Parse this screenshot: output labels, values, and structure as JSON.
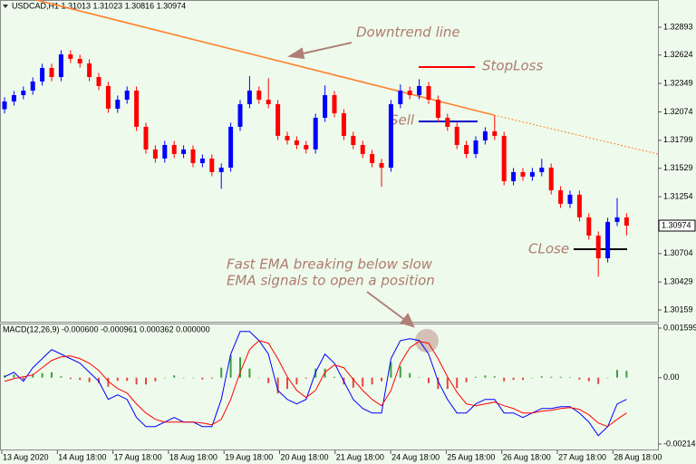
{
  "chart_data": [
    {
      "type": "candlestick",
      "title": "USDCAD,H1  1.31013 1.31023 1.30816 1.30974",
      "up_color": "#0000ff",
      "down_color": "#ff0000",
      "ylim": [
        1.30045,
        1.33156
      ],
      "yticks": [
        1.32893,
        1.32624,
        1.32349,
        1.32074,
        1.31799,
        1.31529,
        1.31254,
        1.30704,
        1.30429,
        1.30159
      ],
      "last_price": 1.30974,
      "xticks": [
        "13 Aug 2020",
        "14 Aug 18:00",
        "17 Aug 18:00",
        "18 Aug 18:00",
        "19 Aug 18:00",
        "20 Aug 18:00",
        "21 Aug 18:00",
        "24 Aug 18:00",
        "25 Aug 18:00",
        "26 Aug 18:00",
        "27 Aug 18:00",
        "28 Aug 18:00"
      ],
      "annotations": [
        "Downtrend line",
        "StopLoss",
        "Sell",
        "CLose",
        "Fast EMA breaking below slow",
        "EMA signals to open a position"
      ],
      "open": [
        1.321,
        1.32175,
        1.32236,
        1.3228,
        1.32368,
        1.32499,
        1.32411,
        1.3263,
        1.32587,
        1.32543,
        1.32411,
        1.32324,
        1.32105,
        1.32192,
        1.3228,
        1.3193,
        1.31711,
        1.31623,
        1.31754,
        1.31667,
        1.31711,
        1.31579,
        1.31623,
        1.31492,
        1.31535,
        1.3193,
        1.32149,
        1.3228,
        1.32192,
        1.32149,
        1.31842,
        1.31798,
        1.31754,
        1.31711,
        1.32017,
        1.32236,
        1.32061,
        1.31842,
        1.31754,
        1.31667,
        1.31579,
        1.31535,
        1.32149,
        1.3228,
        1.32236,
        1.32324,
        1.32192,
        1.32017,
        1.3193,
        1.31754,
        1.31667,
        1.31798,
        1.31886,
        1.31842,
        1.31404,
        1.31492,
        1.31448,
        1.31492,
        1.31535,
        1.31316,
        1.31185,
        1.31273,
        1.31054,
        1.30878,
        1.30659,
        1.3101,
        1.31054
      ],
      "high": [
        1.32215,
        1.32276,
        1.3232,
        1.32408,
        1.32539,
        1.32539,
        1.3267,
        1.3267,
        1.32627,
        1.32583,
        1.32451,
        1.32364,
        1.32232,
        1.3232,
        1.3232,
        1.3197,
        1.31751,
        1.31794,
        1.31794,
        1.31751,
        1.31751,
        1.31663,
        1.31663,
        1.31575,
        1.3197,
        1.32189,
        1.3242,
        1.3232,
        1.324,
        1.32189,
        1.31882,
        1.31838,
        1.31794,
        1.32057,
        1.3233,
        1.32276,
        1.32101,
        1.31882,
        1.31794,
        1.31707,
        1.31619,
        1.32189,
        1.3234,
        1.3232,
        1.3239,
        1.32364,
        1.32232,
        1.32057,
        1.3197,
        1.31794,
        1.31838,
        1.31926,
        1.3204,
        1.31882,
        1.31532,
        1.31532,
        1.31532,
        1.3162,
        1.31575,
        1.31356,
        1.31313,
        1.31313,
        1.31094,
        1.30918,
        1.3105,
        1.3124,
        1.31094
      ],
      "low": [
        1.3206,
        1.32135,
        1.32196,
        1.3224,
        1.32328,
        1.32371,
        1.32371,
        1.32547,
        1.32503,
        1.32371,
        1.32284,
        1.32065,
        1.32065,
        1.32152,
        1.3189,
        1.31671,
        1.31583,
        1.31583,
        1.31627,
        1.31627,
        1.31539,
        1.31539,
        1.31452,
        1.3133,
        1.31495,
        1.3189,
        1.32109,
        1.32152,
        1.32109,
        1.31802,
        1.31758,
        1.31714,
        1.31671,
        1.31671,
        1.31977,
        1.32021,
        1.31802,
        1.31714,
        1.31627,
        1.31539,
        1.3135,
        1.31495,
        1.32109,
        1.32196,
        1.32196,
        1.32152,
        1.31977,
        1.3189,
        1.31714,
        1.31627,
        1.31627,
        1.31758,
        1.31802,
        1.31364,
        1.31364,
        1.31408,
        1.31408,
        1.31452,
        1.31276,
        1.31145,
        1.31145,
        1.31014,
        1.30838,
        1.3048,
        1.30619,
        1.3097,
        1.3088
      ],
      "close": [
        1.32175,
        1.32236,
        1.3228,
        1.32368,
        1.32499,
        1.32411,
        1.3263,
        1.32587,
        1.32543,
        1.32411,
        1.32324,
        1.32105,
        1.32192,
        1.3228,
        1.3193,
        1.31711,
        1.31623,
        1.31754,
        1.31667,
        1.31711,
        1.31579,
        1.31623,
        1.31492,
        1.31535,
        1.3193,
        1.32149,
        1.3228,
        1.32192,
        1.32149,
        1.31842,
        1.31798,
        1.31754,
        1.31711,
        1.32017,
        1.32236,
        1.32061,
        1.31842,
        1.31754,
        1.31667,
        1.31579,
        1.31535,
        1.32149,
        1.3228,
        1.32236,
        1.32324,
        1.32192,
        1.32017,
        1.3193,
        1.31754,
        1.31667,
        1.31798,
        1.31886,
        1.31842,
        1.31404,
        1.31492,
        1.31448,
        1.31492,
        1.31535,
        1.31316,
        1.31185,
        1.31273,
        1.31054,
        1.30878,
        1.30659,
        1.3101,
        1.31054,
        1.30974
      ]
    },
    {
      "type": "macd",
      "title": "MACD(12,26,9) -0.000600 -0.000961 0.000362 0.000000",
      "ylim": [
        -0.002345,
        0.001745
      ],
      "yticks": [
        0.001599,
        {
          "value": 0,
          "label": "0.00"
        },
        -0.002141
      ],
      "histogram": {
        "up_color": "#3ca03c",
        "down_color": "#e8453c",
        "values": [
          7.3e-05,
          0.000102,
          -7.3e-05,
          0.000117,
          0.000146,
          0.000175,
          4.4e-05,
          -4.4e-05,
          -7.3e-05,
          -0.000146,
          -0.000176,
          -0.000292,
          -0.000103,
          -0.000103,
          -0.000219,
          -0.000219,
          -0.000117,
          0,
          7.3e-05,
          0,
          0,
          -5.9e-05,
          -3e-05,
          0.000321,
          0.00073,
          0.000657,
          0.000292,
          0,
          -0.000176,
          -0.000511,
          -0.000365,
          -0.000219,
          -3e-05,
          0.000292,
          0.000292,
          2.9e-05,
          -0.000219,
          -0.000322,
          -0.000292,
          -0.000219,
          -0.000117,
          0.000511,
          0.000365,
          0.000146,
          1.5e-05,
          -0.000176,
          -0.000365,
          -0.000365,
          -0.000336,
          -0.000146,
          2.9e-05,
          7.3e-05,
          4.4e-05,
          -0.000117,
          -7.3e-05,
          -7.3e-05,
          0,
          4.4e-05,
          2.9e-05,
          3e-05,
          1.5e-05,
          -5.9e-05,
          -0.000117,
          -0.000205,
          0,
          0.000248,
          0.000219
        ]
      },
      "series": [
        {
          "color": "#0000ff",
          "values": [
            2.9e-05,
            0.000175,
            -0.000117,
            0.000321,
            0.000613,
            0.000905,
            0.000759,
            0.000613,
            0.000467,
            0.000175,
            -0.000117,
            -0.000701,
            -0.000555,
            -0.000701,
            -0.001285,
            -0.001577,
            -0.001577,
            -0.001431,
            -0.001285,
            -0.001431,
            -0.001431,
            -0.001577,
            -0.001577,
            -0.000701,
            0.000759,
            0.001489,
            0.001489,
            0.001197,
            0.000759,
            -0.000409,
            -0.000701,
            -0.000847,
            -0.000701,
            0.000175,
            0.000759,
            0.000467,
            -0.000117,
            -0.000701,
            -0.000993,
            -0.001139,
            -0.001139,
            0.000613,
            0.001197,
            0.001256,
            0.001197,
            0.000759,
            -0.000117,
            -0.000701,
            -0.001139,
            -0.001139,
            -0.000847,
            -0.000701,
            -0.000701,
            -0.001139,
            -0.001139,
            -0.001285,
            -0.001139,
            -0.000993,
            -0.000993,
            -0.000934,
            -0.000934,
            -0.001139,
            -0.001431,
            -0.001869,
            -0.001577,
            -0.000847,
            -0.000701
          ]
        },
        {
          "color": "#ff0000",
          "values": [
            -0.000117,
            -2.9e-05,
            2.9e-05,
            8.8e-05,
            0.000321,
            0.000555,
            0.000672,
            0.000701,
            0.000613,
            0.000467,
            0.000234,
            -0.000117,
            -0.00035,
            -0.000496,
            -0.000847,
            -0.001139,
            -0.001343,
            -0.001431,
            -0.001431,
            -0.001431,
            -0.001431,
            -0.00146,
            -0.001518,
            -0.001343,
            -0.000701,
            0.000175,
            0.000905,
            0.001197,
            0.00111,
            0.000613,
            2.9e-05,
            -0.000409,
            -0.000642,
            -0.000409,
            0.000175,
            0.000409,
            0.000321,
            -5.8e-05,
            -0.000409,
            -0.000701,
            -0.000905,
            -0.000409,
            0.000467,
            0.000964,
            0.001168,
            0.00111,
            0.000613,
            2.9e-05,
            -0.000467,
            -0.000847,
            -0.000905,
            -0.000847,
            -0.000788,
            -0.000905,
            -0.000993,
            -0.001139,
            -0.001139,
            -0.00108,
            -0.001051,
            -0.000993,
            -0.000964,
            -0.001022,
            -0.001197,
            -0.00146,
            -0.001577,
            -0.001343,
            -0.001139
          ]
        }
      ]
    }
  ]
}
